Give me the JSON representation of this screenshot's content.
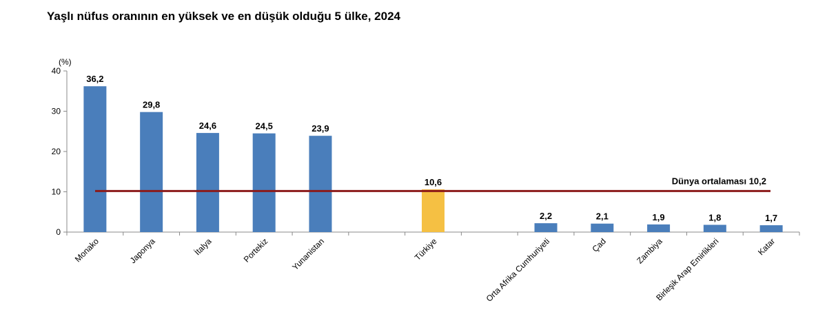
{
  "title": "Yaşlı nüfus oranının en yüksek ve en düşük olduğu 5 ülke, 2024",
  "chart_data": {
    "type": "bar",
    "title": "Yaşlı nüfus oranının en yüksek ve en düşük olduğu 5 ülke, 2024",
    "ylabel": "(%)",
    "xlabel": "",
    "ylim": [
      0,
      40
    ],
    "yticks": [
      "0",
      "10",
      "20",
      "30",
      "40"
    ],
    "categories": [
      "Monako",
      "Japonya",
      "İtalya",
      "Portekiz",
      "Yunanistan",
      "",
      "Türkiye",
      "",
      "Orta Afrika Cumhuriyeti",
      "Çad",
      "Zambiya",
      "Birleşik Arap Emirlikleri",
      "Katar"
    ],
    "values": [
      36.2,
      29.8,
      24.6,
      24.5,
      23.9,
      null,
      10.6,
      null,
      2.2,
      2.1,
      1.9,
      1.8,
      1.7
    ],
    "value_labels": [
      "36,2",
      "29,8",
      "24,6",
      "24,5",
      "23,9",
      "",
      "10,6",
      "",
      "2,2",
      "2,1",
      "1,9",
      "1,8",
      "1,7"
    ],
    "highlight": "Türkiye",
    "reference_line": {
      "label": "Dünya ortalaması  10,2",
      "value": 10.2
    },
    "colors": {
      "bar": "#4a7ebb",
      "highlight": "#f5c043",
      "line": "#8b1a1a",
      "axis": "#888888"
    }
  }
}
